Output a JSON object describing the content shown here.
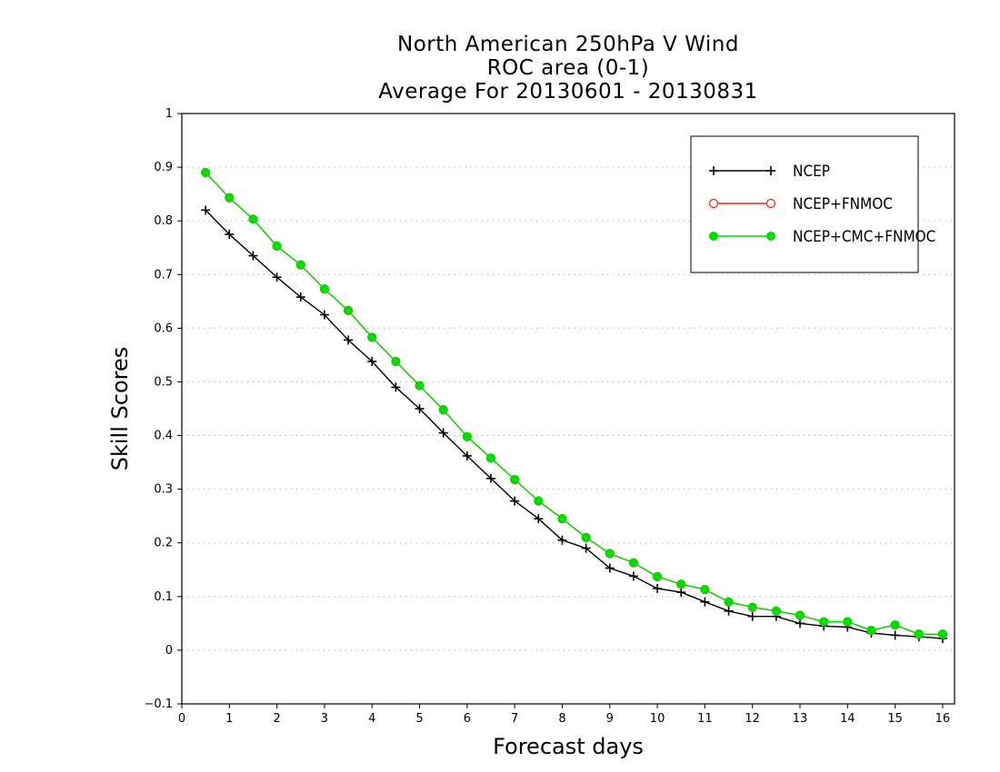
{
  "chart_data": {
    "type": "line",
    "title_lines": [
      "North American 250hPa V Wind",
      "ROC area (0-1)",
      "Average For 20130601 - 20130831"
    ],
    "xlabel": "Forecast days",
    "ylabel": "Skill Scores",
    "xlim": [
      0,
      16.25
    ],
    "ylim": [
      -0.1,
      1
    ],
    "xticks": [
      "0",
      "1",
      "2",
      "3",
      "4",
      "5",
      "6",
      "7",
      "8",
      "9",
      "10",
      "11",
      "12",
      "13",
      "14",
      "15",
      "16"
    ],
    "yticks": [
      "−0.1",
      "0",
      "0.1",
      "0.2",
      "0.3",
      "0.4",
      "0.5",
      "0.6",
      "0.7",
      "0.8",
      "0.9",
      "1"
    ],
    "grid": "horizontal dotted",
    "legend_position": "top-right",
    "x": [
      0.5,
      1,
      1.5,
      2,
      2.5,
      3,
      3.5,
      4,
      4.5,
      5,
      5.5,
      6,
      6.5,
      7,
      7.5,
      8,
      8.5,
      9,
      9.5,
      10,
      10.5,
      11,
      11.5,
      12,
      12.5,
      13,
      13.5,
      14,
      14.5,
      15,
      15.5,
      16
    ],
    "series": [
      {
        "name": "NCEP",
        "color": "#000000",
        "marker": "plus",
        "values": [
          0.82,
          0.775,
          0.735,
          0.695,
          0.658,
          0.625,
          0.578,
          0.538,
          0.49,
          0.45,
          0.405,
          0.362,
          0.32,
          0.278,
          0.245,
          0.205,
          0.19,
          0.153,
          0.138,
          0.115,
          0.108,
          0.09,
          0.073,
          0.063,
          0.063,
          0.05,
          0.045,
          0.043,
          0.032,
          0.028,
          0.025,
          0.022
        ]
      },
      {
        "name": "NCEP+FNMOC",
        "color": "#ff2020",
        "marker": "open-circle",
        "values": [
          0.89,
          0.843,
          0.803,
          0.753,
          0.718,
          0.673,
          0.633,
          0.583,
          0.538,
          0.493,
          0.448,
          0.398,
          0.358,
          0.318,
          0.278,
          0.245,
          0.21,
          0.18,
          0.163,
          0.137,
          0.123,
          0.113,
          0.09,
          0.08,
          0.073,
          0.065,
          0.053,
          0.053,
          0.037,
          0.047,
          0.03,
          0.03
        ]
      },
      {
        "name": "NCEP+CMC+FNMOC",
        "color": "#00dd00",
        "marker": "filled-circle",
        "values": [
          0.89,
          0.843,
          0.803,
          0.753,
          0.718,
          0.673,
          0.633,
          0.583,
          0.538,
          0.493,
          0.448,
          0.398,
          0.358,
          0.318,
          0.278,
          0.245,
          0.21,
          0.18,
          0.163,
          0.137,
          0.123,
          0.113,
          0.09,
          0.08,
          0.073,
          0.065,
          0.053,
          0.053,
          0.037,
          0.047,
          0.03,
          0.03
        ]
      }
    ]
  }
}
